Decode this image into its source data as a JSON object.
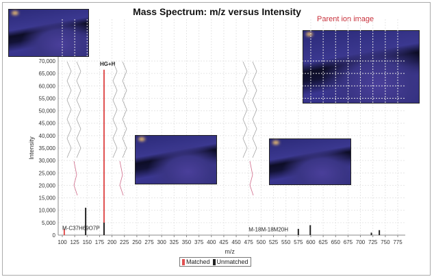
{
  "chart_data": {
    "type": "bar",
    "title": "Mass Spectrum: m/z versus Intensity",
    "xlabel": "m/z",
    "ylabel": "Intensity",
    "xlim": [
      100,
      775
    ],
    "ylim": [
      0,
      70000
    ],
    "xticks": [
      100,
      125,
      150,
      175,
      200,
      225,
      250,
      275,
      300,
      325,
      350,
      375,
      400,
      425,
      450,
      475,
      500,
      525,
      550,
      575,
      600,
      625,
      650,
      675,
      700,
      725,
      750,
      775
    ],
    "yticks": [
      0,
      5000,
      10000,
      15000,
      20000,
      25000,
      30000,
      35000,
      40000,
      45000,
      50000,
      55000,
      60000,
      65000,
      70000
    ],
    "grid": true,
    "legend_position": "bottom",
    "series": [
      {
        "name": "Matched",
        "color": "#e05050",
        "points": [
          [
            104,
            2500
          ],
          [
            184,
            66500
          ]
        ]
      },
      {
        "name": "Unmatched",
        "color": "#222222",
        "points": [
          [
            147,
            11000
          ],
          [
            184,
            5000
          ],
          [
            575,
            2500
          ],
          [
            599,
            4000
          ],
          [
            722,
            1000
          ],
          [
            738,
            2000
          ]
        ]
      }
    ],
    "annotations": [
      {
        "text": "HG+H",
        "x": 184,
        "y": 67500
      },
      {
        "text": "M-C37H69O7P",
        "x": 100,
        "y": 1500
      },
      {
        "text": "M-18M-18M20H",
        "x": 475,
        "y": 1000
      }
    ]
  },
  "parent_label": "Parent ion image"
}
